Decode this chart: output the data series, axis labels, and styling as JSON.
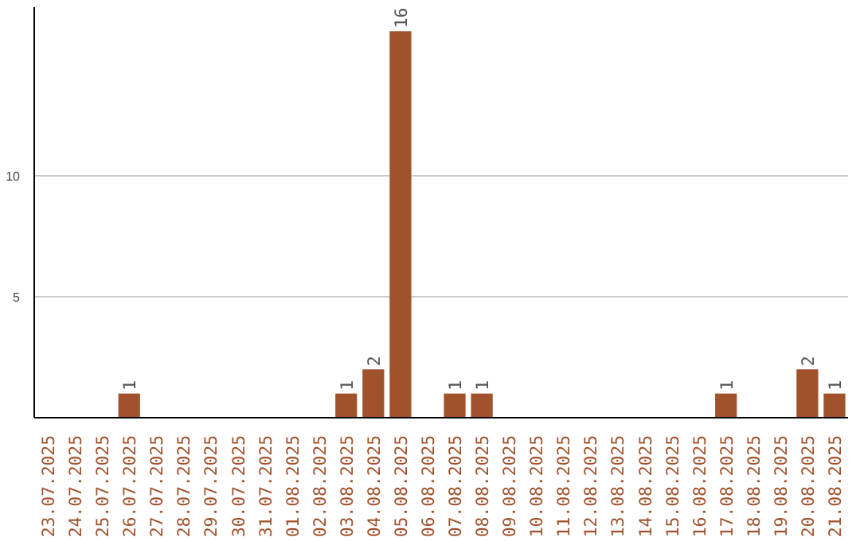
{
  "chart_data": {
    "type": "bar",
    "categories": [
      "23.07.2025",
      "24.07.2025",
      "25.07.2025",
      "26.07.2025",
      "27.07.2025",
      "28.07.2025",
      "29.07.2025",
      "30.07.2025",
      "31.07.2025",
      "01.08.2025",
      "02.08.2025",
      "03.08.2025",
      "04.08.2025",
      "05.08.2025",
      "06.08.2025",
      "07.08.2025",
      "08.08.2025",
      "09.08.2025",
      "10.08.2025",
      "11.08.2025",
      "12.08.2025",
      "13.08.2025",
      "14.08.2025",
      "15.08.2025",
      "16.08.2025",
      "17.08.2025",
      "18.08.2025",
      "19.08.2025",
      "20.08.2025",
      "21.08.2025"
    ],
    "values": [
      0,
      0,
      0,
      1,
      0,
      0,
      0,
      0,
      0,
      0,
      0,
      1,
      2,
      16,
      0,
      1,
      1,
      0,
      0,
      0,
      0,
      0,
      0,
      0,
      0,
      1,
      0,
      0,
      2,
      1
    ],
    "value_labels": [
      null,
      null,
      null,
      "1",
      null,
      null,
      null,
      null,
      null,
      null,
      null,
      "1",
      "2",
      "16",
      null,
      "1",
      "1",
      null,
      null,
      null,
      null,
      null,
      null,
      null,
      null,
      "1",
      null,
      null,
      "2",
      "1"
    ],
    "color": "#a0522d",
    "ylim": [
      0,
      17
    ],
    "yticks": [
      5,
      10
    ],
    "grid": "y"
  }
}
